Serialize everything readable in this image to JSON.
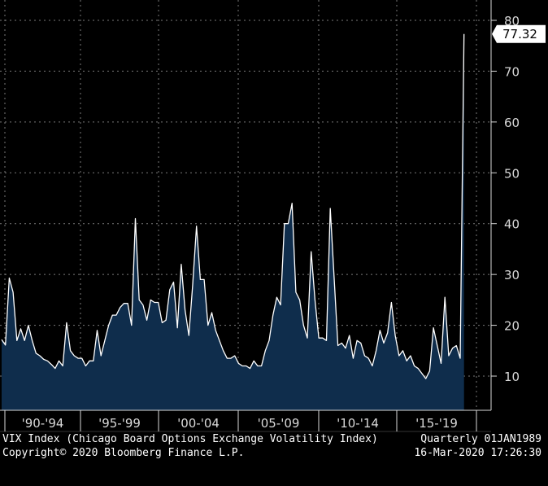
{
  "chart_data": {
    "type": "area",
    "frequency": "Quarterly",
    "start": "01JAN1989",
    "x_tick_labels": [
      "'90-'94",
      "'95-'99",
      "'00-'04",
      "'05-'09",
      "'10-'14",
      "'15-'19"
    ],
    "y_ticks": [
      10,
      20,
      30,
      40,
      50,
      60,
      70,
      80
    ],
    "ylim": [
      2,
      82
    ],
    "grid": true,
    "last_value_label": "77.32",
    "series": [
      {
        "values": [
          17.2,
          16.1,
          29.3,
          26.5,
          17.0,
          19.3,
          17.0,
          20.0,
          17.0,
          14.5,
          14.0,
          13.3,
          13.0,
          12.3,
          11.5,
          13.0,
          12.0,
          20.5,
          15.0,
          14.0,
          13.5,
          13.5,
          12.0,
          13.0,
          13.0,
          19.0,
          14.0,
          17.0,
          20.0,
          22.0,
          22.0,
          23.5,
          24.3,
          24.3,
          20.0,
          41.0,
          25.0,
          24.0,
          21.0,
          25.0,
          24.5,
          24.5,
          20.5,
          21.0,
          27.0,
          28.5,
          19.5,
          32.0,
          23.0,
          18.0,
          28.0,
          39.5,
          29.0,
          29.0,
          20.0,
          22.5,
          19.0,
          17.0,
          15.0,
          13.5,
          13.5,
          14.0,
          12.5,
          12.0,
          12.0,
          11.5,
          13.0,
          12.0,
          12.0,
          15.0,
          17.0,
          22.0,
          25.5,
          24.0,
          40.0,
          40.0,
          44.0,
          26.5,
          25.0,
          20.0,
          17.5,
          34.5,
          25.0,
          17.5,
          17.5,
          17.0,
          43.0,
          29.5,
          16.0,
          16.5,
          15.5,
          18.0,
          13.5,
          17.0,
          16.5,
          14.0,
          13.5,
          12.0,
          15.0,
          19.0,
          16.5,
          18.5,
          24.5,
          18.0,
          14.0,
          15.0,
          13.0,
          14.0,
          12.0,
          11.5,
          10.5,
          9.5,
          11.0,
          19.5,
          16.0,
          12.5,
          25.5,
          14.0,
          15.5,
          16.0,
          13.5,
          77.32
        ]
      }
    ]
  },
  "footer": {
    "left_line1": "VIX Index (Chicago Board Options Exchange Volatility Index)",
    "right_line1": "Quarterly 01JAN1989",
    "left_line2": "Copyright© 2020 Bloomberg Finance L.P.",
    "right_line2": "16-Mar-2020 17:26:30"
  },
  "colors": {
    "background": "#000000",
    "area_fill": "#0f2d4c",
    "line": "#ffffff",
    "grid": "#7a7a7a",
    "text": "#d9d9d9",
    "label_box": "#ffffff"
  }
}
